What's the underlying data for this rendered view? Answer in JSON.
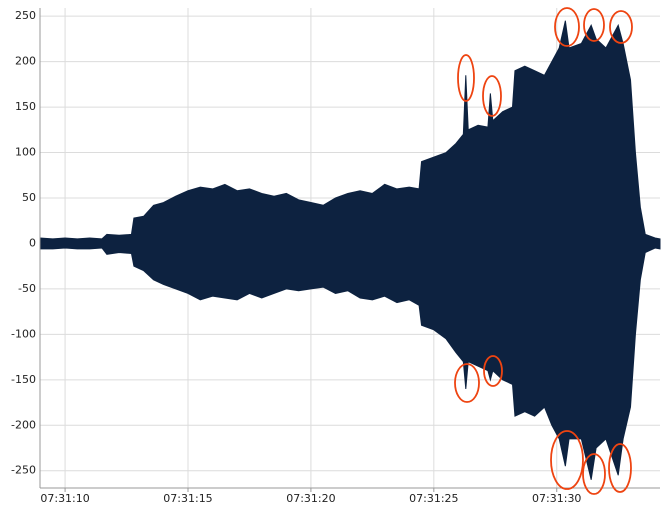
{
  "chart_data": {
    "type": "area",
    "x": [
      9.0,
      9.5,
      10,
      10.5,
      11,
      11.5,
      11.7,
      12.2,
      12.7,
      12.8,
      13.2,
      13.6,
      14,
      14.5,
      15,
      15.5,
      16,
      16.5,
      17,
      17.5,
      18,
      18.5,
      19,
      19.5,
      20,
      20.5,
      21,
      21.5,
      22,
      22.5,
      23,
      23.5,
      24,
      24.4,
      24.5,
      25,
      25.5,
      25.9,
      26.2,
      26.3,
      26.4,
      26.8,
      27.2,
      27.3,
      27.4,
      27.8,
      28.2,
      28.3,
      28.7,
      29.1,
      29.5,
      29.8,
      30.1,
      30.35,
      30.5,
      31,
      31.4,
      31.6,
      32,
      32.5,
      32.7,
      33,
      33.2,
      33.4,
      33.6,
      34,
      34.2
    ],
    "series": [
      {
        "color": "#0d2240",
        "values": [
          6,
          5,
          6,
          5,
          6,
          5,
          10,
          9,
          10,
          28,
          30,
          42,
          45,
          52,
          58,
          62,
          60,
          65,
          58,
          60,
          55,
          52,
          55,
          48,
          45,
          42,
          50,
          55,
          58,
          55,
          65,
          60,
          62,
          60,
          90,
          95,
          100,
          110,
          120,
          185,
          125,
          130,
          128,
          165,
          135,
          145,
          150,
          190,
          195,
          190,
          185,
          200,
          215,
          245,
          215,
          220,
          240,
          225,
          215,
          240,
          220,
          180,
          100,
          40,
          10,
          6,
          5
        ]
      },
      {
        "color": "#0d2240",
        "values": [
          -6,
          -6,
          -5,
          -6,
          -6,
          -5,
          -12,
          -10,
          -11,
          -25,
          -30,
          -40,
          -45,
          -50,
          -55,
          -62,
          -58,
          -60,
          -62,
          -55,
          -60,
          -55,
          -50,
          -52,
          -50,
          -48,
          -55,
          -52,
          -60,
          -62,
          -58,
          -65,
          -62,
          -68,
          -90,
          -95,
          -105,
          -120,
          -130,
          -160,
          -130,
          -135,
          -140,
          -150,
          -140,
          -150,
          -155,
          -190,
          -185,
          -190,
          -180,
          -200,
          -215,
          -245,
          -215,
          -215,
          -260,
          -225,
          -215,
          -255,
          -215,
          -180,
          -100,
          -40,
          -10,
          -5,
          -6
        ]
      }
    ],
    "xlim": [
      8.98,
      34.2
    ],
    "xticks": [
      {
        "value": 10,
        "label": "07:31:10"
      },
      {
        "value": 15,
        "label": "07:31:15"
      },
      {
        "value": 20,
        "label": "07:31:20"
      },
      {
        "value": 25,
        "label": "07:31:25"
      },
      {
        "value": 30,
        "label": "07:31:30"
      }
    ],
    "ylim": [
      -269,
      259
    ],
    "yticks": [
      -250,
      -200,
      -150,
      -100,
      -50,
      0,
      50,
      100,
      150,
      200,
      250
    ],
    "grid": true
  }
}
